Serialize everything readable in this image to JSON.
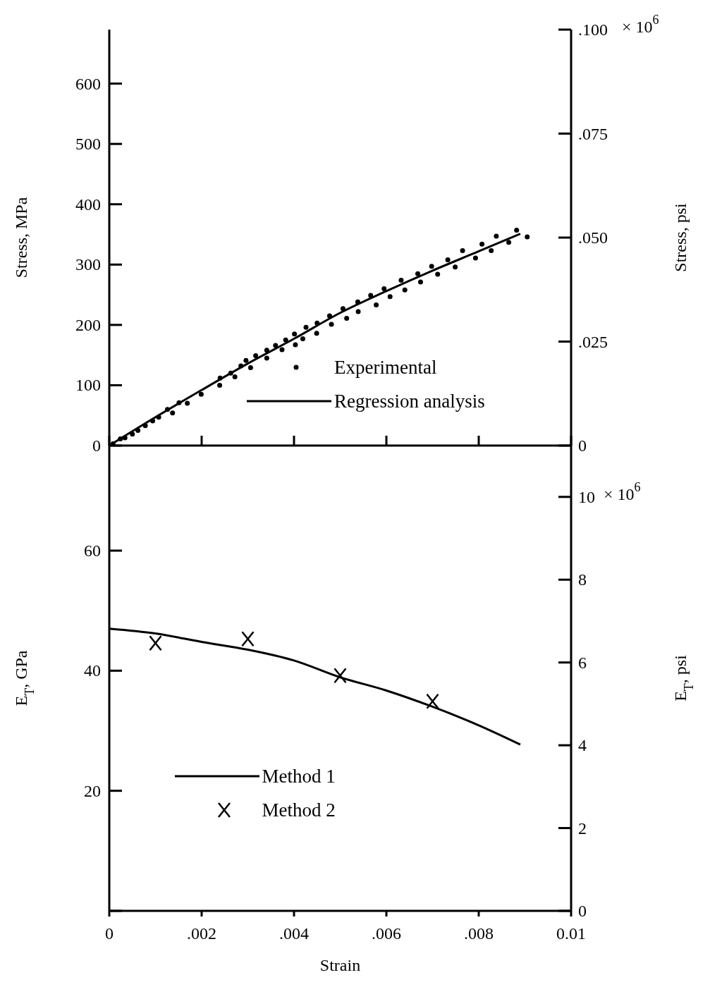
{
  "chart_data": [
    {
      "type": "scatter",
      "ylabel": "Stress, MPa",
      "y2label": "Stress, psi",
      "xlim": [
        0,
        0.01
      ],
      "xticks": [
        0,
        0.002,
        0.004,
        0.006,
        0.008,
        0.01
      ],
      "ylim": [
        0,
        689.5
      ],
      "yticks": [
        0,
        100,
        200,
        300,
        400,
        500,
        600
      ],
      "y2lim": [
        0,
        0.1
      ],
      "y2ticks": [
        {
          "value": 0,
          "label": "0"
        },
        {
          "value": 0.025,
          "label": ".025"
        },
        {
          "value": 0.05,
          "label": ".050"
        },
        {
          "value": 0.075,
          "label": ".075"
        },
        {
          "value": 0.1,
          "label": ".100"
        }
      ],
      "annotations": [
        "× 10$^{6}$"
      ],
      "tick_labels": "y",
      "legend": "bottom right",
      "series": [
        {
          "name": "Experimental",
          "marker": "circle",
          "color": "#000000",
          "x": [
            8e-05,
            0.00024,
            0.00034,
            0.0005,
            0.00062,
            0.00078,
            0.00094,
            0.00107,
            0.00126,
            0.00137,
            0.00151,
            0.00169,
            0.00199,
            0.0024,
            0.00239,
            0.00263,
            0.00272,
            0.00285,
            0.00296,
            0.00306,
            0.00317,
            0.00341,
            0.00341,
            0.0036,
            0.00374,
            0.00382,
            0.00403,
            0.00401,
            0.00419,
            0.00426,
            0.00449,
            0.0045,
            0.00477,
            0.00481,
            0.00506,
            0.00514,
            0.00538,
            0.00539,
            0.00566,
            0.00578,
            0.00595,
            0.00608,
            0.00632,
            0.0064,
            0.00668,
            0.00674,
            0.00698,
            0.00711,
            0.00733,
            0.00749,
            0.00765,
            0.00793,
            0.00807,
            0.00827,
            0.00838,
            0.00865,
            0.00882,
            0.00905
          ],
          "values": [
            3,
            11,
            13,
            19,
            25,
            33,
            41,
            47,
            60,
            54,
            71,
            70,
            85,
            112,
            100,
            120,
            114,
            132,
            141,
            129,
            149,
            158,
            145,
            166,
            159,
            175,
            167,
            185,
            177,
            196,
            186,
            203,
            215,
            201,
            227,
            211,
            238,
            222,
            249,
            233,
            260,
            247,
            274,
            258,
            285,
            271,
            297,
            284,
            308,
            296,
            323,
            311,
            334,
            323,
            347,
            337,
            357,
            346
          ]
        },
        {
          "name": "Regression analysis",
          "type": "line",
          "marker": "none",
          "color": "#000000",
          "x": [
            0,
            0.001,
            0.002,
            0.003,
            0.004,
            0.005,
            0.006,
            0.007,
            0.008,
            0.0089
          ],
          "values": [
            0,
            47,
            92,
            136,
            177,
            220,
            256,
            290,
            322,
            351
          ]
        }
      ]
    },
    {
      "type": "line",
      "ylabel": "E$_{T}$, GPa",
      "y2label": "E$_{T}$, psi",
      "xlabel": "Strain",
      "xlim": [
        0,
        0.01
      ],
      "xticks": [
        {
          "value": 0,
          "label": "0"
        },
        {
          "value": 0.002,
          "label": ".002"
        },
        {
          "value": 0.004,
          "label": ".004"
        },
        {
          "value": 0.006,
          "label": ".006"
        },
        {
          "value": 0.008,
          "label": ".008"
        },
        {
          "value": 0.01,
          "label": "0.01"
        }
      ],
      "ylim": [
        0,
        77.5
      ],
      "yticks": [
        {
          "value": 0,
          "label": null
        },
        20,
        40,
        60
      ],
      "y2lim": [
        0,
        11.24
      ],
      "y2ticks": [
        0,
        2,
        4,
        6,
        8,
        10
      ],
      "annotations": [
        "× 10$^{6}$"
      ],
      "legend": "bottom",
      "series": [
        {
          "name": "Method 1",
          "marker": "none",
          "color": "#000000",
          "x": [
            0,
            0.001,
            0.002,
            0.003,
            0.004,
            0.005,
            0.006,
            0.007,
            0.008,
            0.0089
          ],
          "values": [
            47,
            46.2,
            44.8,
            43.5,
            41.7,
            38.9,
            36.7,
            34,
            30.9,
            27.7
          ]
        },
        {
          "name": "Method 2",
          "type": "scatter",
          "marker": "cross",
          "color": "#000000",
          "x": [
            0.001,
            0.003,
            0.005,
            0.007
          ],
          "values": [
            44.6,
            45.3,
            39.2,
            34.9
          ]
        }
      ]
    }
  ]
}
